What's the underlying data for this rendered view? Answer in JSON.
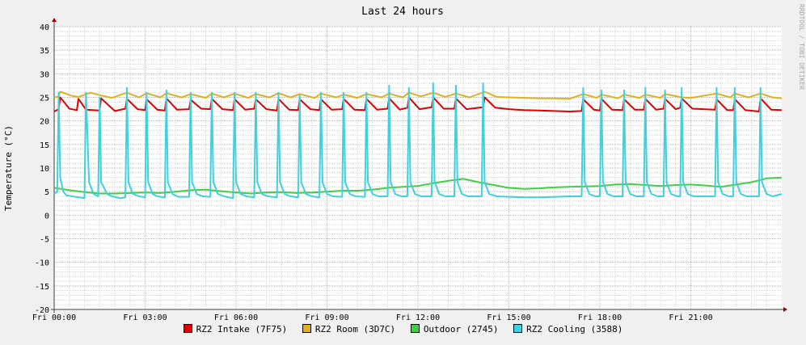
{
  "chart_data": {
    "type": "line",
    "title": "Last 24 hours",
    "ylabel": "Temperature (°C)",
    "watermark": "RRDTOOL / TOBI OETIKER",
    "ylim": [
      -20,
      40
    ],
    "xlim_hours": [
      0,
      24
    ],
    "y_ticks": [
      -20,
      -15,
      -10,
      -5,
      0,
      5,
      10,
      15,
      20,
      25,
      30,
      35,
      40
    ],
    "x_ticks": [
      {
        "h": 0,
        "label": "Fri 00:00"
      },
      {
        "h": 3,
        "label": "Fri 03:00"
      },
      {
        "h": 6,
        "label": "Fri 06:00"
      },
      {
        "h": 9,
        "label": "Fri 09:00"
      },
      {
        "h": 12,
        "label": "Fri 12:00"
      },
      {
        "h": 15,
        "label": "Fri 15:00"
      },
      {
        "h": 18,
        "label": "Fri 18:00"
      },
      {
        "h": 21,
        "label": "Fri 21:00"
      }
    ],
    "grid": true,
    "legend_position": "bottom",
    "series": [
      {
        "name": "RZ2 Intake (7F75)",
        "color": "#e00000",
        "x": [
          0,
          0.15,
          0.2,
          0.5,
          0.75,
          0.8,
          1.05,
          1.5,
          1.55,
          2.0,
          2.35,
          2.4,
          2.75,
          3.0,
          3.05,
          3.4,
          3.65,
          3.7,
          4.05,
          4.45,
          4.5,
          4.85,
          5.15,
          5.2,
          5.55,
          5.9,
          5.95,
          6.3,
          6.6,
          6.65,
          7.0,
          7.35,
          7.4,
          7.75,
          8.05,
          8.1,
          8.45,
          8.75,
          8.8,
          9.15,
          9.5,
          9.55,
          9.9,
          10.25,
          10.3,
          10.65,
          11.0,
          11.05,
          11.4,
          11.65,
          11.7,
          12.05,
          12.45,
          12.5,
          12.85,
          13.2,
          13.25,
          13.6,
          14.15,
          14.2,
          14.55,
          15.0,
          15.5,
          16.0,
          16.5,
          17.0,
          17.4,
          17.45,
          17.8,
          18.0,
          18.05,
          18.4,
          18.75,
          18.8,
          19.15,
          19.45,
          19.5,
          19.85,
          20.1,
          20.15,
          20.5,
          20.65,
          20.7,
          21.05,
          21.8,
          21.85,
          22.2,
          22.4,
          22.45,
          22.8,
          23.25,
          23.3,
          23.65,
          24.0
        ],
        "values": [
          22.0,
          22.5,
          25.0,
          22.6,
          22.3,
          24.7,
          22.4,
          22.2,
          24.8,
          22.1,
          22.6,
          24.7,
          22.5,
          22.3,
          24.6,
          22.4,
          22.2,
          24.8,
          22.4,
          22.5,
          24.5,
          22.6,
          22.5,
          24.7,
          22.5,
          22.3,
          24.6,
          22.4,
          22.6,
          24.6,
          22.5,
          22.2,
          24.7,
          22.4,
          22.3,
          24.6,
          22.5,
          22.3,
          24.6,
          22.4,
          22.5,
          24.7,
          22.4,
          22.3,
          24.7,
          22.4,
          22.6,
          24.8,
          22.4,
          22.8,
          25.0,
          22.5,
          22.9,
          25.0,
          22.6,
          22.6,
          24.8,
          22.5,
          22.9,
          25.0,
          22.8,
          22.5,
          22.3,
          22.2,
          22.1,
          22.0,
          22.1,
          24.6,
          22.4,
          22.2,
          24.7,
          22.4,
          22.3,
          24.6,
          22.4,
          22.4,
          24.7,
          22.4,
          22.6,
          24.7,
          22.5,
          22.8,
          24.8,
          22.6,
          22.4,
          24.6,
          22.3,
          22.3,
          24.6,
          22.3,
          22.0,
          24.8,
          22.4,
          22.3
        ]
      },
      {
        "name": "RZ2 Room (3D7C)",
        "color": "#e0b020",
        "x": [
          0,
          0.15,
          0.2,
          0.6,
          0.8,
          1.2,
          1.55,
          1.9,
          2.4,
          2.8,
          3.05,
          3.5,
          3.7,
          4.2,
          4.5,
          5.0,
          5.2,
          5.6,
          5.95,
          6.4,
          6.65,
          7.1,
          7.4,
          7.8,
          8.1,
          8.6,
          8.8,
          9.3,
          9.55,
          10.0,
          10.3,
          10.8,
          11.05,
          11.5,
          11.7,
          12.1,
          12.5,
          12.9,
          13.25,
          13.7,
          14.2,
          14.6,
          15.0,
          15.5,
          16.0,
          16.5,
          17.0,
          17.45,
          17.9,
          18.05,
          18.6,
          18.8,
          19.3,
          19.5,
          20.0,
          20.15,
          20.7,
          21.0,
          21.85,
          22.3,
          22.45,
          22.9,
          23.3,
          23.7,
          24.0
        ],
        "values": [
          25.0,
          25.2,
          26.2,
          25.3,
          25.1,
          26.0,
          25.4,
          24.9,
          26.0,
          25.0,
          25.9,
          25.0,
          25.9,
          25.0,
          25.7,
          24.9,
          25.8,
          25.0,
          25.8,
          24.9,
          25.7,
          25.0,
          25.9,
          25.0,
          25.7,
          24.9,
          25.8,
          25.0,
          25.6,
          24.9,
          25.7,
          25.0,
          25.8,
          25.0,
          26.0,
          25.2,
          26.0,
          25.1,
          25.8,
          25.0,
          26.2,
          25.1,
          25.0,
          24.9,
          24.8,
          24.8,
          24.7,
          25.7,
          24.9,
          25.6,
          24.8,
          25.6,
          24.9,
          25.6,
          24.9,
          25.7,
          25.0,
          24.9,
          25.8,
          25.0,
          25.8,
          25.0,
          25.8,
          25.0,
          24.8
        ]
      },
      {
        "name": "Outdoor (2745)",
        "color": "#40d040",
        "x": [
          0,
          0.5,
          1.0,
          1.5,
          2.0,
          2.5,
          3.0,
          3.5,
          4.0,
          4.5,
          5.0,
          5.5,
          6.0,
          6.5,
          7.0,
          7.5,
          8.0,
          8.5,
          9.0,
          9.5,
          10.0,
          10.5,
          11.0,
          11.5,
          12.0,
          12.5,
          13.0,
          13.5,
          14.0,
          14.5,
          15.0,
          15.5,
          16.0,
          16.5,
          17.0,
          17.5,
          18.0,
          18.5,
          19.0,
          19.5,
          20.0,
          20.5,
          21.0,
          21.5,
          22.0,
          22.5,
          23.0,
          23.5,
          24.0
        ],
        "values": [
          5.8,
          5.3,
          4.9,
          4.6,
          4.6,
          4.7,
          4.8,
          4.7,
          5.0,
          5.3,
          5.4,
          5.1,
          4.8,
          4.6,
          4.8,
          4.9,
          4.7,
          4.8,
          5.0,
          5.2,
          5.2,
          5.4,
          5.8,
          6.0,
          6.2,
          6.8,
          7.3,
          7.7,
          7.0,
          6.4,
          5.8,
          5.6,
          5.7,
          5.9,
          6.0,
          6.1,
          6.2,
          6.5,
          6.6,
          6.4,
          6.2,
          6.4,
          6.5,
          6.3,
          6.0,
          6.5,
          7.0,
          7.8,
          8.0
        ]
      },
      {
        "name": "RZ2 Cooling (3588)",
        "color": "#40d0e0",
        "x": [
          0,
          0.1,
          0.15,
          0.2,
          0.3,
          0.4,
          0.8,
          1.0,
          1.05,
          1.15,
          1.3,
          1.45,
          1.5,
          1.55,
          1.75,
          1.9,
          2.2,
          2.35,
          2.4,
          2.45,
          2.6,
          2.8,
          3.0,
          3.05,
          3.1,
          3.25,
          3.4,
          3.65,
          3.7,
          3.75,
          3.9,
          4.1,
          4.45,
          4.5,
          4.55,
          4.7,
          4.9,
          5.15,
          5.2,
          5.25,
          5.4,
          5.6,
          5.9,
          5.95,
          6.0,
          6.15,
          6.35,
          6.6,
          6.65,
          6.7,
          6.85,
          7.05,
          7.35,
          7.4,
          7.45,
          7.6,
          7.8,
          8.05,
          8.1,
          8.15,
          8.3,
          8.5,
          8.75,
          8.8,
          8.85,
          9.0,
          9.2,
          9.5,
          9.55,
          9.6,
          9.75,
          9.95,
          10.25,
          10.3,
          10.35,
          10.5,
          10.7,
          11.0,
          11.05,
          11.1,
          11.25,
          11.45,
          11.65,
          11.7,
          11.75,
          11.9,
          12.1,
          12.45,
          12.5,
          12.55,
          12.7,
          12.9,
          13.2,
          13.25,
          13.3,
          13.45,
          13.65,
          14.1,
          14.15,
          14.2,
          14.35,
          14.6,
          15.0,
          15.5,
          16.0,
          16.5,
          17.0,
          17.4,
          17.45,
          17.5,
          17.65,
          17.85,
          18.0,
          18.05,
          18.1,
          18.25,
          18.45,
          18.75,
          18.8,
          18.85,
          19.0,
          19.2,
          19.45,
          19.5,
          19.55,
          19.7,
          19.9,
          20.1,
          20.15,
          20.2,
          20.35,
          20.55,
          20.65,
          20.7,
          20.75,
          20.9,
          21.1,
          21.5,
          21.8,
          21.85,
          21.9,
          22.05,
          22.25,
          22.4,
          22.45,
          22.5,
          22.65,
          22.85,
          23.25,
          23.3,
          23.35,
          23.5,
          23.7,
          24.0
        ],
        "values": [
          4.5,
          5.0,
          26.0,
          8.0,
          5.0,
          4.2,
          3.8,
          3.6,
          26.0,
          7.0,
          4.5,
          4.0,
          25.0,
          7.0,
          4.5,
          4.0,
          3.6,
          3.8,
          27.0,
          7.0,
          4.5,
          4.0,
          3.8,
          26.0,
          7.0,
          4.5,
          4.0,
          3.8,
          26.5,
          7.0,
          4.5,
          3.9,
          3.9,
          26.0,
          7.0,
          4.5,
          4.0,
          3.9,
          26.0,
          7.0,
          4.5,
          4.0,
          3.6,
          26.0,
          7.0,
          4.5,
          4.0,
          3.8,
          26.0,
          7.0,
          4.5,
          4.0,
          3.8,
          26.0,
          7.0,
          4.5,
          4.0,
          3.8,
          25.5,
          7.0,
          4.5,
          4.0,
          3.8,
          26.0,
          7.0,
          4.5,
          4.0,
          3.9,
          26.0,
          7.0,
          4.5,
          4.0,
          3.9,
          26.0,
          7.0,
          4.5,
          4.0,
          4.0,
          27.5,
          7.0,
          4.5,
          4.0,
          4.0,
          27.0,
          7.0,
          4.5,
          4.0,
          4.0,
          28.0,
          7.0,
          4.5,
          4.0,
          4.0,
          27.5,
          7.0,
          4.5,
          4.0,
          4.0,
          28.0,
          7.0,
          4.5,
          4.0,
          3.9,
          3.8,
          3.8,
          3.9,
          4.0,
          4.0,
          27.0,
          7.0,
          4.5,
          4.0,
          4.0,
          26.5,
          7.0,
          4.5,
          4.0,
          4.0,
          26.5,
          7.0,
          4.5,
          4.0,
          4.0,
          27.0,
          7.0,
          4.5,
          4.0,
          4.0,
          26.5,
          7.0,
          4.5,
          4.0,
          4.0,
          27.0,
          7.0,
          4.5,
          4.0,
          4.0,
          4.0,
          27.0,
          7.0,
          4.5,
          4.0,
          4.0,
          27.0,
          7.0,
          4.5,
          4.0,
          4.0,
          27.0,
          7.0,
          4.5,
          4.0,
          4.5
        ]
      }
    ]
  }
}
